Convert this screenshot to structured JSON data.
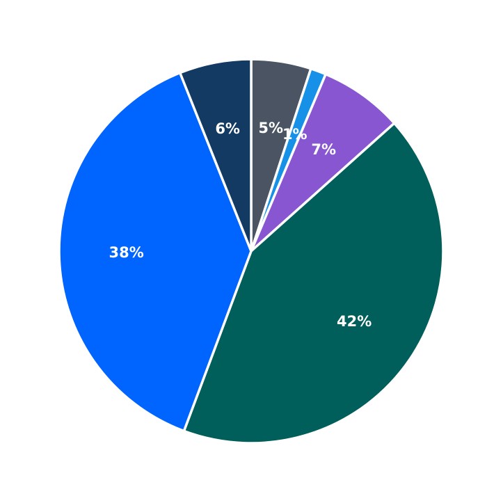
{
  "chart_data": {
    "type": "pie",
    "title": "",
    "start_angle": "top",
    "direction": "clockwise",
    "slices": [
      {
        "value": 5,
        "label": "5%",
        "color": "#4a5462"
      },
      {
        "value": 1.3,
        "label": "1%",
        "color": "#1791e8"
      },
      {
        "value": 7,
        "label": "7%",
        "color": "#8856d0"
      },
      {
        "value": 42,
        "label": "42%",
        "color": "#005e5b"
      },
      {
        "value": 38,
        "label": "38%",
        "color": "#0064ff"
      },
      {
        "value": 6,
        "label": "6%",
        "color": "#133a63"
      }
    ]
  }
}
